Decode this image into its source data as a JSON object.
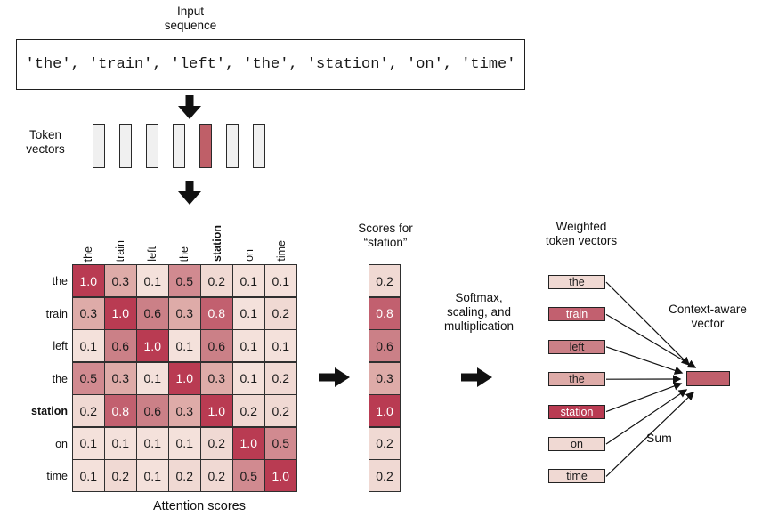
{
  "input_sequence": {
    "label": "Input\nsequence",
    "text": "'the', 'train', 'left', 'the', 'station', 'on', 'time'"
  },
  "token_vectors": {
    "label": "Token\nvectors",
    "count": 7,
    "highlight_index": 4,
    "default_color": "#f0f0f0",
    "highlight_color": "#bf5f68"
  },
  "chart_data": {
    "type": "heatmap",
    "title": "Attention scores",
    "row_labels": [
      "the",
      "train",
      "left",
      "the",
      "station",
      "on",
      "time"
    ],
    "col_labels": [
      "the",
      "train",
      "left",
      "the",
      "station",
      "on",
      "time"
    ],
    "emphasized_index": 4,
    "values": [
      [
        "1.0",
        "0.3",
        "0.1",
        "0.5",
        "0.2",
        "0.1",
        "0.1"
      ],
      [
        "0.3",
        "1.0",
        "0.6",
        "0.3",
        "0.8",
        "0.1",
        "0.2"
      ],
      [
        "0.1",
        "0.6",
        "1.0",
        "0.1",
        "0.6",
        "0.1",
        "0.1"
      ],
      [
        "0.5",
        "0.3",
        "0.1",
        "1.0",
        "0.3",
        "0.1",
        "0.2"
      ],
      [
        "0.2",
        "0.8",
        "0.6",
        "0.3",
        "1.0",
        "0.2",
        "0.2"
      ],
      [
        "0.1",
        "0.1",
        "0.1",
        "0.1",
        "0.2",
        "1.0",
        "0.5"
      ],
      [
        "0.1",
        "0.2",
        "0.1",
        "0.2",
        "0.2",
        "0.5",
        "1.0"
      ]
    ],
    "color_scale": {
      "1.0": {
        "bg": "#b93b52",
        "fg": "#ffffff"
      },
      "0.8": {
        "bg": "#c2606f",
        "fg": "#ffffff"
      },
      "0.6": {
        "bg": "#cb8087",
        "fg": "#1a1a1a"
      },
      "0.5": {
        "bg": "#d18a90",
        "fg": "#1a1a1a"
      },
      "0.3": {
        "bg": "#deaba8",
        "fg": "#1a1a1a"
      },
      "0.2": {
        "bg": "#f0d9d3",
        "fg": "#1a1a1a"
      },
      "0.1": {
        "bg": "#f4e1db",
        "fg": "#1a1a1a"
      }
    }
  },
  "scores_column": {
    "label": "Scores for\n“station”",
    "values": [
      "0.2",
      "0.8",
      "0.6",
      "0.3",
      "1.0",
      "0.2",
      "0.2"
    ]
  },
  "transform_step": {
    "label": "Softmax,\nscaling, and\nmultiplication"
  },
  "weighted_vectors": {
    "label": "Weighted\ntoken vectors",
    "items": [
      {
        "token": "the",
        "weight": "0.2"
      },
      {
        "token": "train",
        "weight": "0.8"
      },
      {
        "token": "left",
        "weight": "0.6"
      },
      {
        "token": "the",
        "weight": "0.3"
      },
      {
        "token": "station",
        "weight": "1.0"
      },
      {
        "token": "on",
        "weight": "0.2"
      },
      {
        "token": "time",
        "weight": "0.2"
      }
    ]
  },
  "output": {
    "label": "Context-aware\nvector",
    "sum_label": "Sum",
    "vector_color": "#c0606c"
  }
}
